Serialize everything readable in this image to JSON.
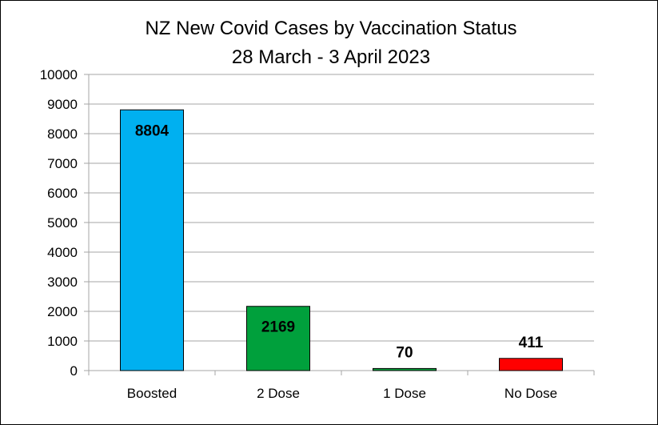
{
  "chart_data": {
    "type": "bar",
    "title": "NZ New Covid Cases by Vaccination Status",
    "subtitle": "28 March - 3 April 2023",
    "categories": [
      "Boosted",
      "2 Dose",
      "1 Dose",
      "No Dose"
    ],
    "values": [
      8804,
      2169,
      70,
      411
    ],
    "data_labels": [
      "8804",
      "2169",
      "70",
      "411"
    ],
    "colors": [
      "#00b0f0",
      "#00a03c",
      "#00a03c",
      "#ff0000"
    ],
    "ylim": [
      0,
      10000
    ],
    "yticks": [
      0,
      1000,
      2000,
      3000,
      4000,
      5000,
      6000,
      7000,
      8000,
      9000,
      10000
    ],
    "ytick_labels": [
      "0",
      "1000",
      "2000",
      "3000",
      "4000",
      "5000",
      "6000",
      "7000",
      "8000",
      "9000",
      "10000"
    ],
    "grid": true,
    "legend": "none",
    "gridline_color": "#a6a6a6",
    "bar_outline_color": "#000000"
  }
}
